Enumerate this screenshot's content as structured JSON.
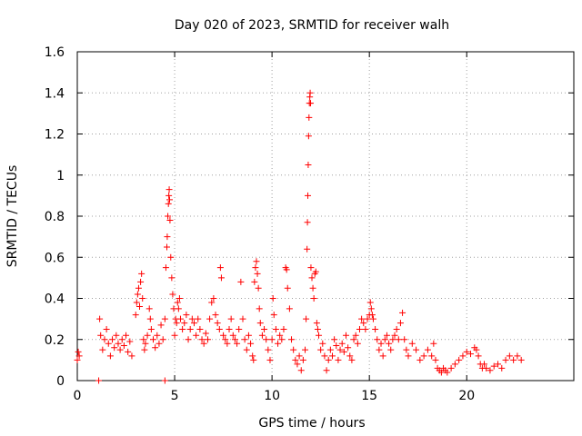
{
  "chart_data": {
    "type": "scatter",
    "title": "Day 020 of 2023, SRMTID for receiver walh",
    "xlabel": "GPS time / hours",
    "ylabel": "SRMTID / TECUs",
    "xlim": [
      0,
      25.5
    ],
    "ylim": [
      0,
      1.6
    ],
    "xticks": [
      0,
      5,
      10,
      15,
      20
    ],
    "xtick_labels": [
      "0",
      "5",
      "10",
      "15",
      "20"
    ],
    "yticks": [
      0,
      0.2,
      0.4,
      0.6,
      0.8,
      1,
      1.2,
      1.4,
      1.6
    ],
    "ytick_labels": [
      "0",
      "0.2",
      "0.4",
      "0.6",
      "0.8",
      "1",
      "1.2",
      "1.4",
      "1.6"
    ],
    "grid": true,
    "marker": "+",
    "color": "#ff0000",
    "series": [
      {
        "name": "SRMTID",
        "points": [
          [
            0.0,
            0.1
          ],
          [
            0.05,
            0.14
          ],
          [
            0.1,
            0.12
          ],
          [
            1.1,
            0.0
          ],
          [
            1.15,
            0.3
          ],
          [
            1.2,
            0.22
          ],
          [
            1.3,
            0.15
          ],
          [
            1.4,
            0.2
          ],
          [
            1.5,
            0.25
          ],
          [
            1.6,
            0.18
          ],
          [
            1.7,
            0.12
          ],
          [
            1.8,
            0.2
          ],
          [
            1.9,
            0.16
          ],
          [
            2.0,
            0.22
          ],
          [
            2.1,
            0.18
          ],
          [
            2.2,
            0.15
          ],
          [
            2.3,
            0.2
          ],
          [
            2.4,
            0.17
          ],
          [
            2.5,
            0.22
          ],
          [
            2.6,
            0.14
          ],
          [
            2.7,
            0.19
          ],
          [
            2.8,
            0.12
          ],
          [
            3.0,
            0.32
          ],
          [
            3.05,
            0.38
          ],
          [
            3.1,
            0.42
          ],
          [
            3.15,
            0.45
          ],
          [
            3.2,
            0.36
          ],
          [
            3.25,
            0.48
          ],
          [
            3.3,
            0.52
          ],
          [
            3.35,
            0.4
          ],
          [
            3.4,
            0.2
          ],
          [
            3.45,
            0.15
          ],
          [
            3.5,
            0.18
          ],
          [
            3.6,
            0.22
          ],
          [
            3.7,
            0.35
          ],
          [
            3.75,
            0.3
          ],
          [
            3.8,
            0.25
          ],
          [
            3.9,
            0.2
          ],
          [
            4.0,
            0.16
          ],
          [
            4.1,
            0.22
          ],
          [
            4.2,
            0.18
          ],
          [
            4.3,
            0.27
          ],
          [
            4.4,
            0.2
          ],
          [
            4.5,
            0.0
          ],
          [
            4.5,
            0.3
          ],
          [
            4.55,
            0.55
          ],
          [
            4.6,
            0.65
          ],
          [
            4.62,
            0.7
          ],
          [
            4.65,
            0.8
          ],
          [
            4.68,
            0.86
          ],
          [
            4.7,
            0.9
          ],
          [
            4.72,
            0.93
          ],
          [
            4.74,
            0.88
          ],
          [
            4.76,
            0.78
          ],
          [
            4.8,
            0.6
          ],
          [
            4.85,
            0.5
          ],
          [
            4.9,
            0.42
          ],
          [
            4.95,
            0.35
          ],
          [
            5.0,
            0.22
          ],
          [
            5.05,
            0.3
          ],
          [
            5.1,
            0.28
          ],
          [
            5.15,
            0.38
          ],
          [
            5.2,
            0.35
          ],
          [
            5.25,
            0.4
          ],
          [
            5.3,
            0.3
          ],
          [
            5.4,
            0.25
          ],
          [
            5.5,
            0.28
          ],
          [
            5.6,
            0.32
          ],
          [
            5.7,
            0.2
          ],
          [
            5.8,
            0.25
          ],
          [
            5.9,
            0.3
          ],
          [
            6.0,
            0.28
          ],
          [
            6.1,
            0.22
          ],
          [
            6.2,
            0.3
          ],
          [
            6.3,
            0.25
          ],
          [
            6.4,
            0.2
          ],
          [
            6.5,
            0.18
          ],
          [
            6.6,
            0.23
          ],
          [
            6.7,
            0.2
          ],
          [
            6.8,
            0.3
          ],
          [
            6.9,
            0.38
          ],
          [
            7.0,
            0.4
          ],
          [
            7.1,
            0.32
          ],
          [
            7.2,
            0.28
          ],
          [
            7.3,
            0.25
          ],
          [
            7.35,
            0.55
          ],
          [
            7.4,
            0.5
          ],
          [
            7.5,
            0.22
          ],
          [
            7.6,
            0.2
          ],
          [
            7.7,
            0.18
          ],
          [
            7.8,
            0.25
          ],
          [
            7.9,
            0.3
          ],
          [
            8.0,
            0.22
          ],
          [
            8.1,
            0.2
          ],
          [
            8.2,
            0.18
          ],
          [
            8.3,
            0.25
          ],
          [
            8.4,
            0.48
          ],
          [
            8.5,
            0.3
          ],
          [
            8.6,
            0.2
          ],
          [
            8.7,
            0.15
          ],
          [
            8.8,
            0.22
          ],
          [
            8.9,
            0.18
          ],
          [
            9.0,
            0.12
          ],
          [
            9.05,
            0.1
          ],
          [
            9.1,
            0.48
          ],
          [
            9.15,
            0.55
          ],
          [
            9.2,
            0.58
          ],
          [
            9.25,
            0.52
          ],
          [
            9.3,
            0.45
          ],
          [
            9.35,
            0.35
          ],
          [
            9.4,
            0.28
          ],
          [
            9.5,
            0.22
          ],
          [
            9.6,
            0.25
          ],
          [
            9.7,
            0.2
          ],
          [
            9.8,
            0.15
          ],
          [
            9.9,
            0.1
          ],
          [
            10.0,
            0.2
          ],
          [
            10.05,
            0.4
          ],
          [
            10.1,
            0.32
          ],
          [
            10.2,
            0.25
          ],
          [
            10.3,
            0.18
          ],
          [
            10.4,
            0.22
          ],
          [
            10.5,
            0.2
          ],
          [
            10.6,
            0.25
          ],
          [
            10.7,
            0.55
          ],
          [
            10.75,
            0.54
          ],
          [
            10.8,
            0.45
          ],
          [
            10.9,
            0.35
          ],
          [
            11.0,
            0.2
          ],
          [
            11.1,
            0.15
          ],
          [
            11.2,
            0.1
          ],
          [
            11.3,
            0.08
          ],
          [
            11.4,
            0.12
          ],
          [
            11.5,
            0.05
          ],
          [
            11.6,
            0.1
          ],
          [
            11.7,
            0.15
          ],
          [
            11.75,
            0.3
          ],
          [
            11.8,
            0.64
          ],
          [
            11.82,
            0.77
          ],
          [
            11.84,
            0.9
          ],
          [
            11.86,
            1.05
          ],
          [
            11.88,
            1.19
          ],
          [
            11.9,
            1.28
          ],
          [
            11.92,
            1.35
          ],
          [
            11.94,
            1.38
          ],
          [
            11.96,
            1.4
          ],
          [
            11.98,
            1.35
          ],
          [
            12.0,
            0.55
          ],
          [
            12.05,
            0.5
          ],
          [
            12.1,
            0.45
          ],
          [
            12.15,
            0.4
          ],
          [
            12.2,
            0.52
          ],
          [
            12.25,
            0.53
          ],
          [
            12.3,
            0.28
          ],
          [
            12.35,
            0.25
          ],
          [
            12.4,
            0.22
          ],
          [
            12.5,
            0.15
          ],
          [
            12.6,
            0.18
          ],
          [
            12.7,
            0.12
          ],
          [
            12.8,
            0.05
          ],
          [
            12.9,
            0.1
          ],
          [
            13.0,
            0.15
          ],
          [
            13.1,
            0.12
          ],
          [
            13.2,
            0.2
          ],
          [
            13.3,
            0.17
          ],
          [
            13.4,
            0.1
          ],
          [
            13.5,
            0.15
          ],
          [
            13.6,
            0.18
          ],
          [
            13.7,
            0.14
          ],
          [
            13.8,
            0.22
          ],
          [
            13.9,
            0.16
          ],
          [
            14.0,
            0.12
          ],
          [
            14.1,
            0.1
          ],
          [
            14.2,
            0.2
          ],
          [
            14.3,
            0.22
          ],
          [
            14.4,
            0.18
          ],
          [
            14.5,
            0.25
          ],
          [
            14.6,
            0.3
          ],
          [
            14.7,
            0.28
          ],
          [
            14.8,
            0.25
          ],
          [
            14.9,
            0.3
          ],
          [
            15.0,
            0.32
          ],
          [
            15.05,
            0.38
          ],
          [
            15.1,
            0.35
          ],
          [
            15.15,
            0.32
          ],
          [
            15.2,
            0.3
          ],
          [
            15.3,
            0.25
          ],
          [
            15.4,
            0.2
          ],
          [
            15.5,
            0.15
          ],
          [
            15.6,
            0.18
          ],
          [
            15.7,
            0.12
          ],
          [
            15.8,
            0.2
          ],
          [
            15.9,
            0.22
          ],
          [
            16.0,
            0.18
          ],
          [
            16.1,
            0.15
          ],
          [
            16.2,
            0.2
          ],
          [
            16.3,
            0.22
          ],
          [
            16.4,
            0.25
          ],
          [
            16.5,
            0.2
          ],
          [
            16.6,
            0.28
          ],
          [
            16.7,
            0.33
          ],
          [
            16.8,
            0.2
          ],
          [
            16.9,
            0.15
          ],
          [
            17.0,
            0.12
          ],
          [
            17.2,
            0.18
          ],
          [
            17.4,
            0.15
          ],
          [
            17.6,
            0.1
          ],
          [
            17.8,
            0.12
          ],
          [
            18.0,
            0.15
          ],
          [
            18.2,
            0.12
          ],
          [
            18.3,
            0.18
          ],
          [
            18.4,
            0.1
          ],
          [
            18.5,
            0.06
          ],
          [
            18.6,
            0.05
          ],
          [
            18.7,
            0.04
          ],
          [
            18.8,
            0.06
          ],
          [
            18.9,
            0.05
          ],
          [
            19.0,
            0.04
          ],
          [
            19.2,
            0.06
          ],
          [
            19.4,
            0.08
          ],
          [
            19.6,
            0.1
          ],
          [
            19.8,
            0.12
          ],
          [
            20.0,
            0.14
          ],
          [
            20.2,
            0.13
          ],
          [
            20.4,
            0.16
          ],
          [
            20.5,
            0.15
          ],
          [
            20.6,
            0.12
          ],
          [
            20.7,
            0.08
          ],
          [
            20.8,
            0.06
          ],
          [
            20.9,
            0.08
          ],
          [
            21.0,
            0.06
          ],
          [
            21.2,
            0.05
          ],
          [
            21.4,
            0.07
          ],
          [
            21.6,
            0.08
          ],
          [
            21.8,
            0.06
          ],
          [
            22.0,
            0.1
          ],
          [
            22.2,
            0.12
          ],
          [
            22.4,
            0.1
          ],
          [
            22.6,
            0.12
          ],
          [
            22.8,
            0.1
          ]
        ]
      }
    ]
  }
}
